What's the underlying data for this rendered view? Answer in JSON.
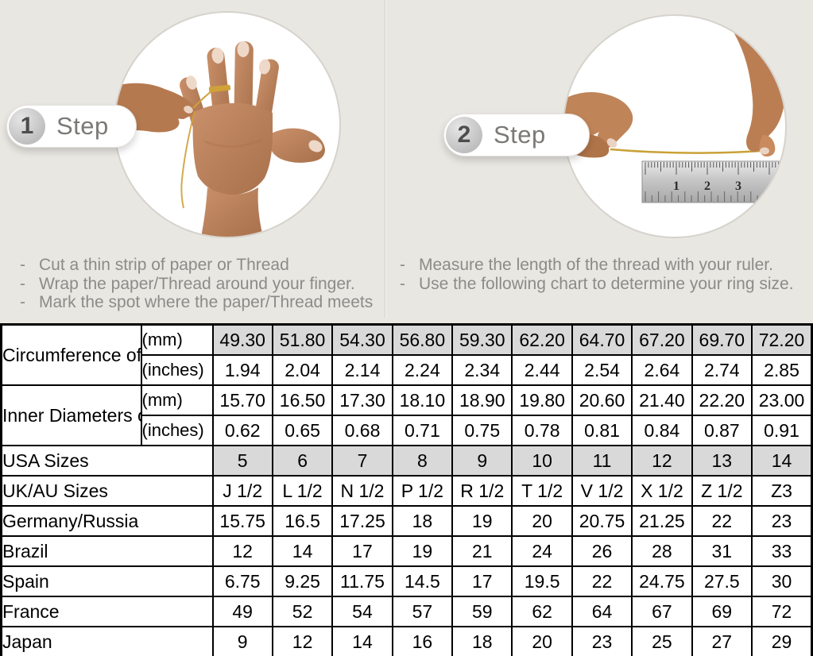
{
  "page": {
    "background_color": "#e9e7e2",
    "description": "Ring size measuring guide with two steps and conversion chart"
  },
  "steps": [
    {
      "number": "1",
      "label": "Step",
      "photo_alt": "hand with a thread wrapped around the ring finger",
      "instructions": [
        "Cut a thin strip of paper or Thread",
        "Wrap the paper/Thread around your finger.",
        "Mark the spot where the paper/Thread meets"
      ]
    },
    {
      "number": "2",
      "label": "Step",
      "photo_alt": "two hands measuring the thread length with a ruler",
      "ruler_numbers": [
        "1",
        "2",
        "3"
      ],
      "instructions": [
        "Measure the length of the thread with your ruler.",
        "Use the following chart to determine your ring size."
      ]
    }
  ],
  "table": {
    "colors": {
      "shaded_cell": "#d9d9d9",
      "border": "#000000",
      "background": "#ffffff"
    },
    "row_groups": [
      {
        "label": "Circumference of Your Finger",
        "rows": [
          {
            "unit": "(mm)",
            "shaded": true,
            "values": [
              "49.30",
              "51.80",
              "54.30",
              "56.80",
              "59.30",
              "62.20",
              "64.70",
              "67.20",
              "69.70",
              "72.20"
            ]
          },
          {
            "unit": "(inches)",
            "shaded": false,
            "values": [
              "1.94",
              "2.04",
              "2.14",
              "2.24",
              "2.34",
              "2.44",
              "2.54",
              "2.64",
              "2.74",
              "2.85"
            ]
          }
        ]
      },
      {
        "label": "Inner Diameters of Rings",
        "rows": [
          {
            "unit": "(mm)",
            "shaded": false,
            "values": [
              "15.70",
              "16.50",
              "17.30",
              "18.10",
              "18.90",
              "19.80",
              "20.60",
              "21.40",
              "22.20",
              "23.00"
            ]
          },
          {
            "unit": "(inches)",
            "shaded": false,
            "values": [
              "0.62",
              "0.65",
              "0.68",
              "0.71",
              "0.75",
              "0.78",
              "0.81",
              "0.84",
              "0.87",
              "0.91"
            ]
          }
        ]
      }
    ],
    "size_rows": [
      {
        "label": "USA Sizes",
        "shaded": true,
        "values": [
          "5",
          "6",
          "7",
          "8",
          "9",
          "10",
          "11",
          "12",
          "13",
          "14"
        ]
      },
      {
        "label": "UK/AU Sizes",
        "shaded": false,
        "values": [
          "J 1/2",
          "L 1/2",
          "N 1/2",
          "P 1/2",
          "R 1/2",
          "T 1/2",
          "V 1/2",
          "X 1/2",
          "Z 1/2",
          "Z3"
        ]
      },
      {
        "label": "Germany/Russia",
        "shaded": false,
        "values": [
          "15.75",
          "16.5",
          "17.25",
          "18",
          "19",
          "20",
          "20.75",
          "21.25",
          "22",
          "23"
        ]
      },
      {
        "label": "Brazil",
        "shaded": false,
        "values": [
          "12",
          "14",
          "17",
          "19",
          "21",
          "24",
          "26",
          "28",
          "31",
          "33"
        ]
      },
      {
        "label": "Spain",
        "shaded": false,
        "values": [
          "6.75",
          "9.25",
          "11.75",
          "14.5",
          "17",
          "19.5",
          "22",
          "24.75",
          "27.5",
          "30"
        ]
      },
      {
        "label": "France",
        "shaded": false,
        "values": [
          "49",
          "52",
          "54",
          "57",
          "59",
          "62",
          "64",
          "67",
          "69",
          "72"
        ]
      },
      {
        "label": "Japan",
        "shaded": false,
        "values": [
          "9",
          "12",
          "14",
          "16",
          "18",
          "20",
          "23",
          "25",
          "27",
          "29"
        ]
      }
    ]
  }
}
